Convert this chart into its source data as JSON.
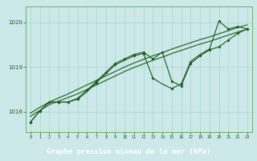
{
  "background_color": "#cce8e8",
  "plot_bg": "#cce8e8",
  "footer_bg": "#2d6a2d",
  "line_color": "#1a5c1a",
  "marker_color": "#1a5c1a",
  "xlabel": "Graphe pression niveau de la mer (hPa)",
  "xlabel_color": "#ffffff",
  "xlabel_fontsize": 6.5,
  "ytick_color": "#1a5c1a",
  "xtick_color": "#ccffcc",
  "yticks": [
    1018,
    1019,
    1020
  ],
  "ylim": [
    1017.55,
    1020.35
  ],
  "xlim": [
    -0.5,
    23.5
  ],
  "xticks": [
    0,
    1,
    2,
    3,
    4,
    5,
    6,
    7,
    8,
    9,
    10,
    11,
    12,
    13,
    14,
    15,
    16,
    17,
    18,
    19,
    20,
    21,
    22,
    23
  ],
  "line1": [
    1017.77,
    1018.02,
    1018.22,
    1018.22,
    1018.22,
    1018.28,
    1018.45,
    1018.65,
    1018.85,
    1019.05,
    1019.15,
    1019.25,
    1019.3,
    1018.75,
    1018.62,
    1018.52,
    1018.62,
    1019.12,
    1019.28,
    1019.4,
    1020.02,
    1019.85,
    1019.9,
    1019.85
  ],
  "line2": [
    1017.77,
    1018.02,
    1018.22,
    1018.22,
    1018.22,
    1018.3,
    1018.48,
    1018.68,
    1018.88,
    1019.08,
    1019.18,
    1019.28,
    1019.33,
    1019.18,
    1019.33,
    1018.68,
    1018.58,
    1019.08,
    1019.25,
    1019.38,
    1019.45,
    1019.6,
    1019.75,
    1019.85
  ],
  "line3": [
    1017.9,
    1018.03,
    1018.16,
    1018.24,
    1018.32,
    1018.4,
    1018.5,
    1018.6,
    1018.7,
    1018.8,
    1018.9,
    1018.99,
    1019.07,
    1019.15,
    1019.22,
    1019.3,
    1019.37,
    1019.44,
    1019.51,
    1019.57,
    1019.64,
    1019.71,
    1019.78,
    1019.84
  ],
  "line4": [
    1017.97,
    1018.1,
    1018.22,
    1018.31,
    1018.4,
    1018.5,
    1018.6,
    1018.7,
    1018.8,
    1018.9,
    1019.0,
    1019.09,
    1019.17,
    1019.25,
    1019.32,
    1019.4,
    1019.47,
    1019.54,
    1019.61,
    1019.67,
    1019.74,
    1019.81,
    1019.88,
    1019.94
  ],
  "m1_idx": [
    0,
    1,
    3,
    5,
    7,
    9,
    11,
    12,
    13,
    15,
    16,
    17,
    19,
    20,
    21,
    22,
    23
  ],
  "m2_idx": [
    0,
    1,
    2,
    3,
    4,
    5,
    6,
    7,
    8,
    9,
    10,
    11,
    12,
    13,
    14,
    15,
    16,
    17,
    18,
    19,
    20,
    21,
    22,
    23
  ]
}
